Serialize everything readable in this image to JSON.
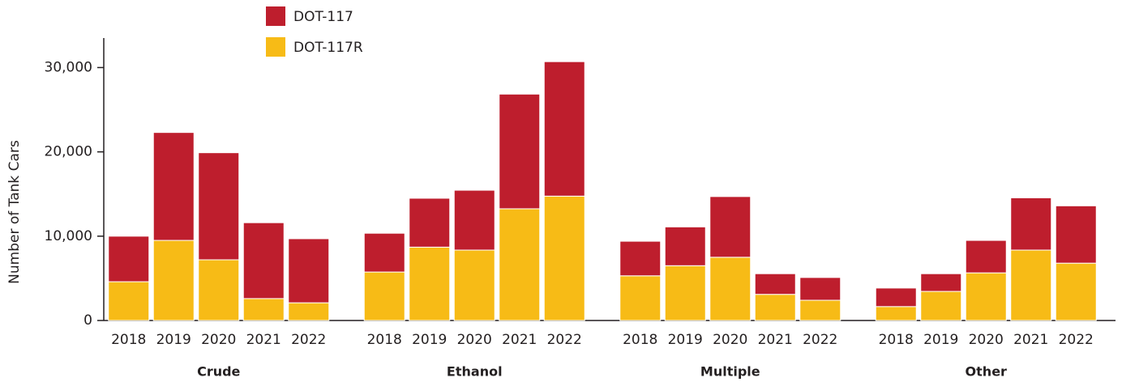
{
  "chart_data": {
    "type": "bar",
    "stacked": true,
    "y_label": "Number of Tank Cars",
    "group_labels": [
      "Crude",
      "Ethanol",
      "Multiple",
      "Other"
    ],
    "categories": [
      "2018",
      "2019",
      "2020",
      "2021",
      "2022",
      "2018",
      "2019",
      "2020",
      "2021",
      "2022",
      "2018",
      "2019",
      "2020",
      "2021",
      "2022",
      "2018",
      "2019",
      "2020",
      "2021",
      "2022"
    ],
    "series": [
      {
        "name": "DOT-117R",
        "color": "#f7bb16",
        "values": [
          4600,
          9500,
          7200,
          2600,
          2100,
          5750,
          8700,
          8350,
          13250,
          14750,
          5300,
          6500,
          7500,
          3100,
          2400,
          1650,
          3450,
          5650,
          8350,
          6800
        ]
      },
      {
        "name": "DOT-117",
        "color": "#be1e2d",
        "values": [
          5400,
          12800,
          12700,
          9000,
          7600,
          4600,
          5800,
          7100,
          13600,
          15950,
          4100,
          4600,
          7200,
          2450,
          2700,
          2200,
          2100,
          3850,
          6200,
          6800
        ]
      }
    ],
    "ylim": [
      0,
      33500
    ],
    "yticks": [
      0,
      {
        "value": 10000,
        "label": "10,000"
      },
      {
        "value": 20000,
        "label": "20,000"
      },
      {
        "value": 30000,
        "label": "30,000"
      }
    ],
    "legend": "top-left"
  }
}
